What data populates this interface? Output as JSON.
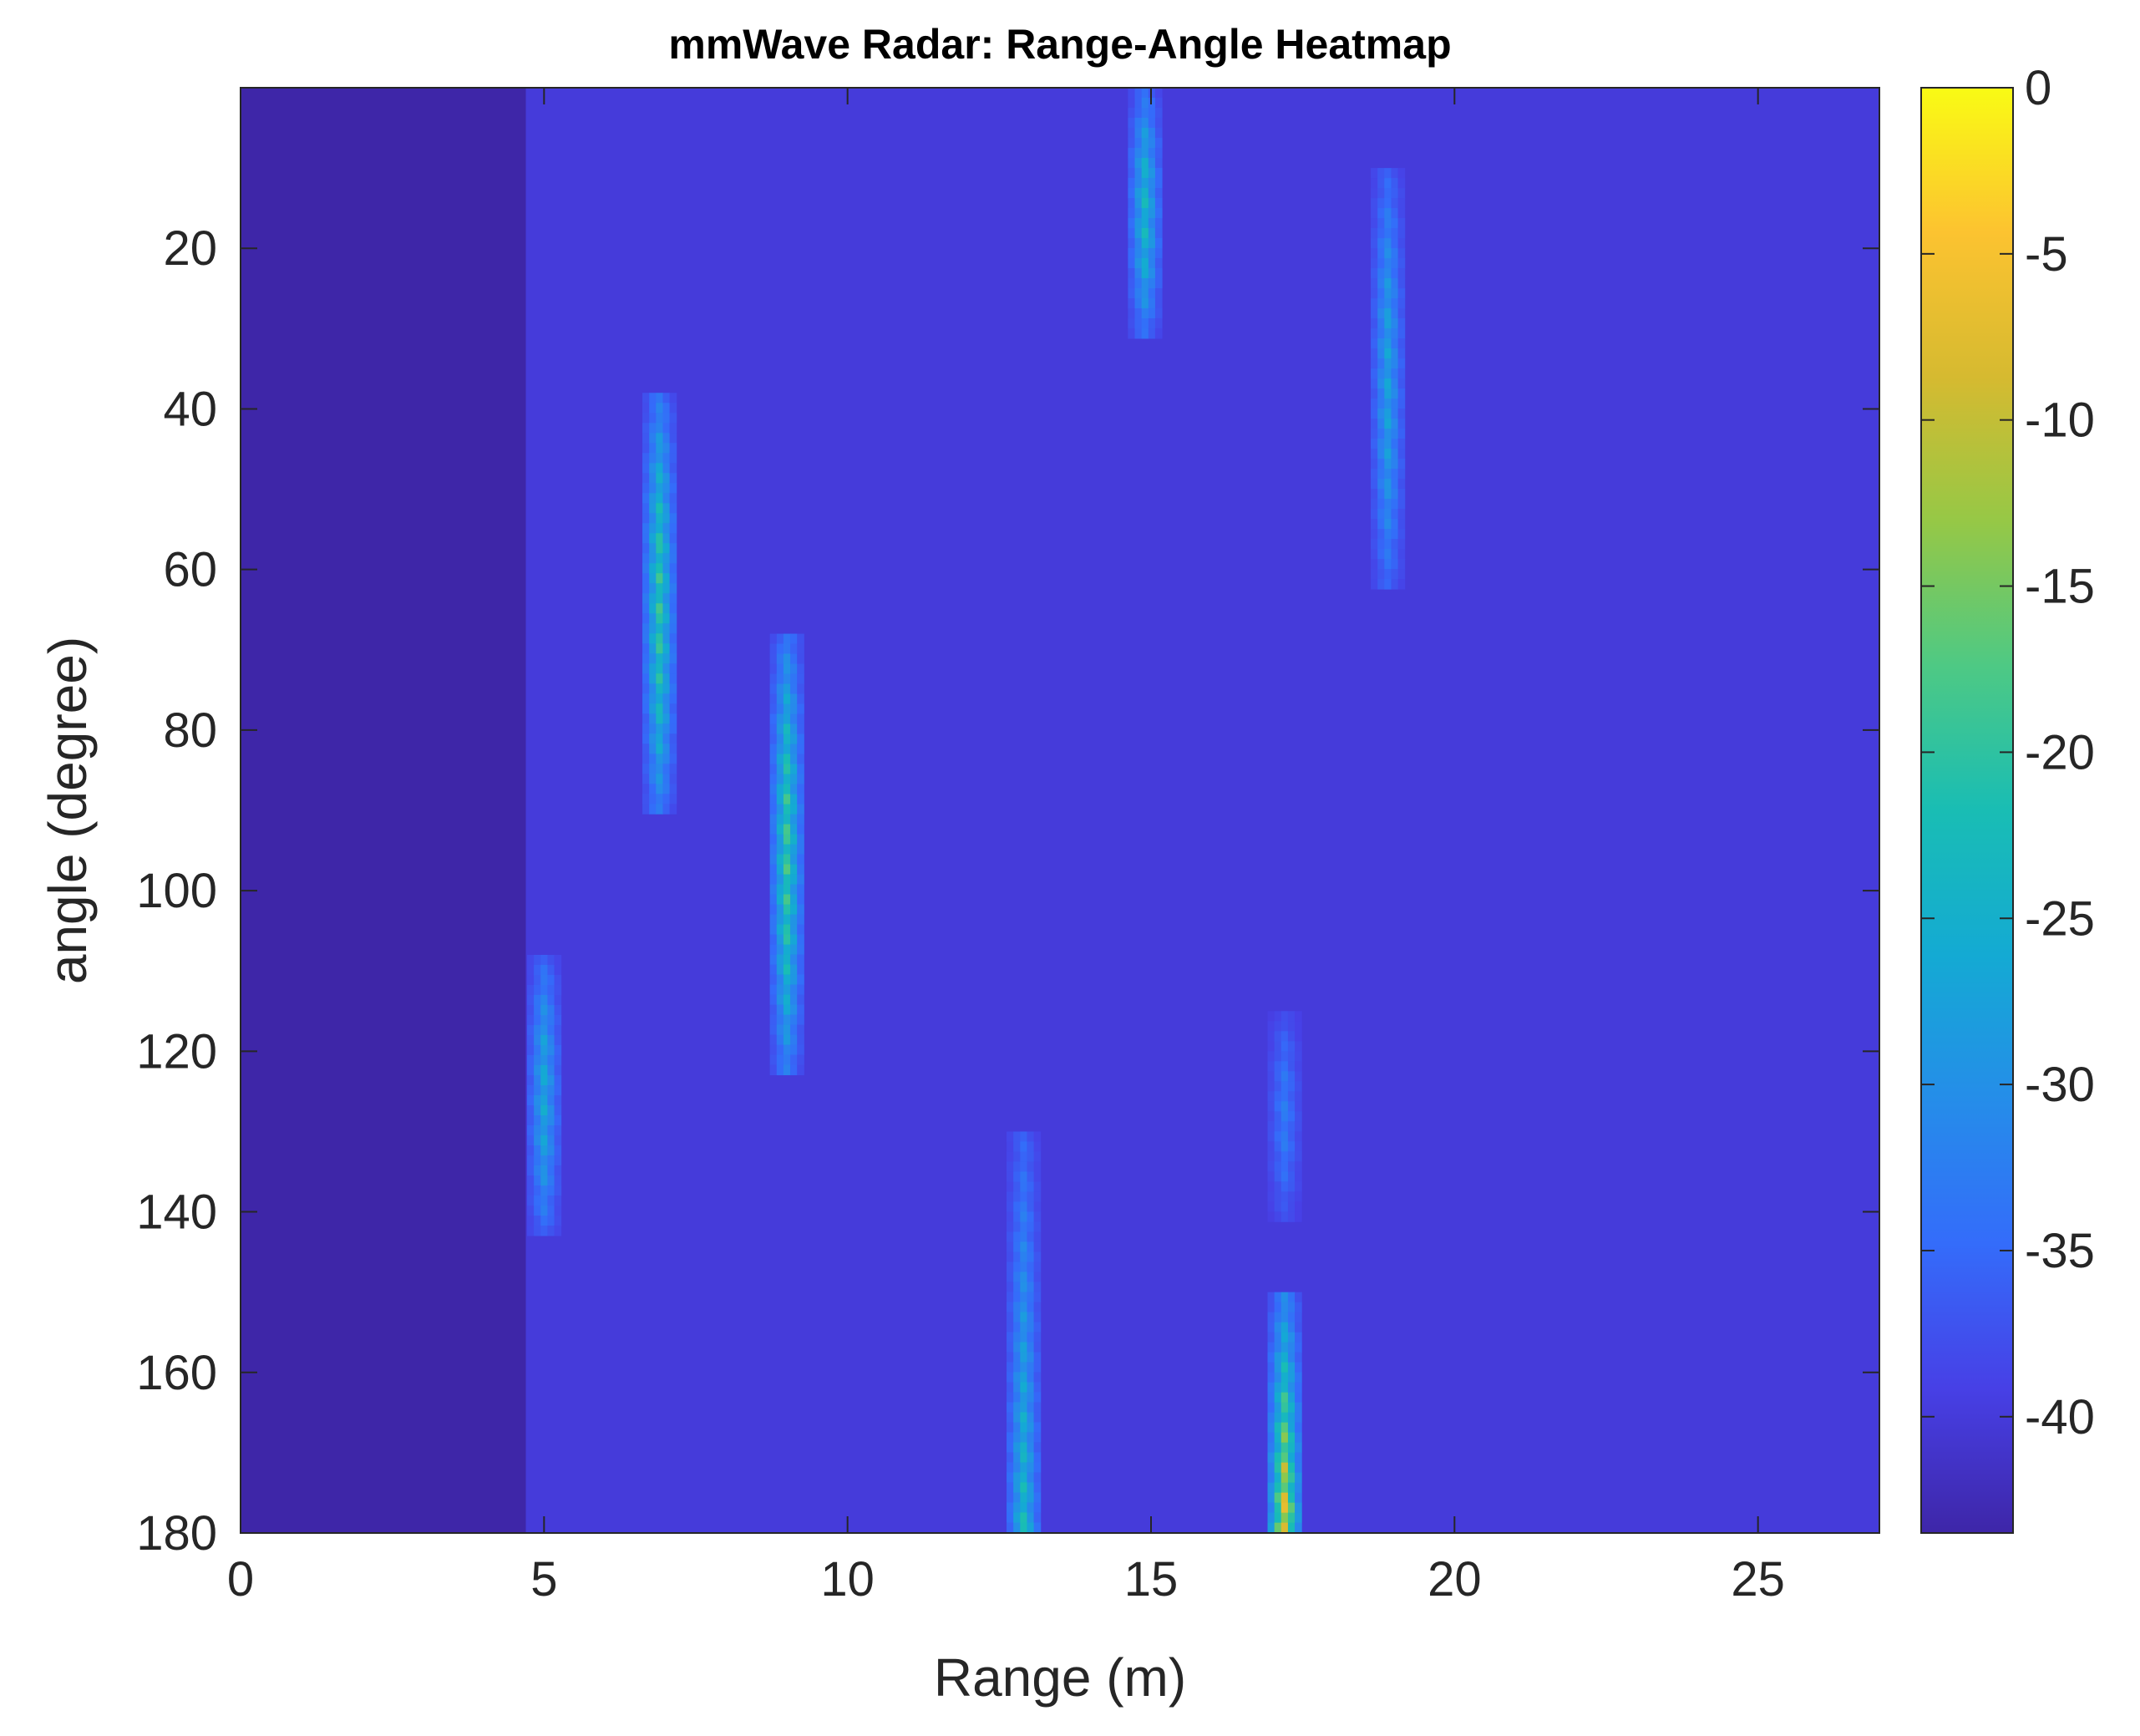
{
  "chart_data": {
    "type": "heatmap",
    "title": "mmWave Radar: Range-Angle Heatmap",
    "xlabel": "Range (m)",
    "ylabel": "angle (degree)",
    "xlim": [
      0,
      27
    ],
    "ylim": [
      0,
      180
    ],
    "y_reversed": true,
    "x_ticks": [
      0,
      5,
      10,
      15,
      20,
      25
    ],
    "y_ticks": [
      20,
      40,
      60,
      80,
      100,
      120,
      140,
      160,
      180
    ],
    "colorbar": {
      "colormap": "parula",
      "range": [
        -43.5,
        0
      ],
      "ticks": [
        0,
        -5,
        -10,
        -15,
        -20,
        -25,
        -30,
        -35,
        -40
      ]
    },
    "background_level_dB": -40,
    "blind_zone": {
      "range": [
        0,
        4.7
      ],
      "level_dB": -43.5
    },
    "returns": [
      {
        "range": 5.0,
        "angle_from": 108,
        "angle_to": 142,
        "peak_dB": -25
      },
      {
        "range": 6.9,
        "angle_from": 38,
        "angle_to": 90,
        "peak_dB": -18
      },
      {
        "range": 9.0,
        "angle_from": 68,
        "angle_to": 122,
        "peak_dB": -17
      },
      {
        "range": 12.9,
        "angle_from": 130,
        "angle_to": 180,
        "peak_dB": -20
      },
      {
        "range": 14.9,
        "angle_from": 0,
        "angle_to": 30,
        "peak_dB": -22
      },
      {
        "range": 17.2,
        "angle_from": 115,
        "angle_to": 140,
        "peak_dB": -32
      },
      {
        "range": 17.2,
        "angle_from": 150,
        "angle_to": 180,
        "peak_dB": -1
      },
      {
        "range": 18.9,
        "angle_from": 10,
        "angle_to": 62,
        "peak_dB": -26
      }
    ]
  }
}
